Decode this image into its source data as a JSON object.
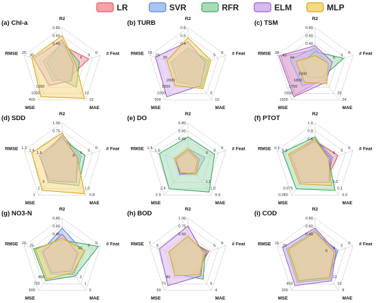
{
  "figure": {
    "legend": [
      {
        "name": "LR",
        "fill": "#f4a3a8",
        "stroke": "#e05a63"
      },
      {
        "name": "SVR",
        "fill": "#a9c4ee",
        "stroke": "#5b86d6"
      },
      {
        "name": "RFR",
        "fill": "#a8dcb9",
        "stroke": "#3da864"
      },
      {
        "name": "ELM",
        "fill": "#d8b8ee",
        "stroke": "#9c62cc"
      },
      {
        "name": "MLP",
        "fill": "#f7d884",
        "stroke": "#d9a81e"
      }
    ]
  },
  "chart_data": [
    {
      "type": "radar",
      "title": "(a) Chl-a",
      "axes": [
        "R2",
        "# Feat",
        "MAE",
        "MSE",
        "RMSE"
      ],
      "axis_ticks": {
        "R2": [
          "0.80",
          "0.60",
          "0.40"
        ],
        "# Feat": [
          "0",
          "3",
          "6"
        ],
        "MAE": [
          "15",
          "10"
        ],
        "MSE": [
          "400",
          "1000",
          "1200"
        ],
        "RMSE": [
          "25",
          "30"
        ]
      },
      "series": [
        {
          "name": "LR",
          "values": [
            0.55,
            0.7,
            0.3,
            0.25,
            0.3
          ]
        },
        {
          "name": "SVR",
          "values": [
            0.6,
            0.3,
            0.35,
            0.4,
            0.5
          ]
        },
        {
          "name": "RFR",
          "values": [
            0.65,
            0.45,
            0.6,
            0.3,
            0.4
          ]
        },
        {
          "name": "ELM",
          "values": [
            0.7,
            0.3,
            0.4,
            0.55,
            0.75
          ]
        },
        {
          "name": "MLP",
          "values": [
            0.8,
            0.35,
            0.95,
            0.9,
            0.8
          ]
        }
      ]
    },
    {
      "type": "radar",
      "title": "(b) TURB",
      "axes": [
        "R2",
        "# Feat",
        "MAE",
        "MSE",
        "RMSE"
      ],
      "axis_ticks": {
        "R2": [
          "0.8",
          "0.6",
          "0.4"
        ],
        "# Feat": [
          "0",
          "5"
        ],
        "MAE": [
          "10",
          "0"
        ],
        "MSE": [
          "500",
          "1000",
          "1500",
          "2000"
        ],
        "RMSE": [
          "18",
          "24",
          "30"
        ]
      },
      "series": [
        {
          "name": "LR",
          "values": [
            0.4,
            0.35,
            0.45,
            0.35,
            0.3
          ]
        },
        {
          "name": "SVR",
          "values": [
            0.45,
            0.5,
            0.5,
            0.45,
            0.4
          ]
        },
        {
          "name": "RFR",
          "values": [
            0.5,
            0.55,
            0.6,
            0.45,
            0.45
          ]
        },
        {
          "name": "ELM",
          "values": [
            0.65,
            0.45,
            0.55,
            0.9,
            0.85
          ]
        },
        {
          "name": "MLP",
          "values": [
            0.75,
            0.6,
            0.65,
            0.55,
            0.55
          ]
        }
      ]
    },
    {
      "type": "radar",
      "title": "(c) TSM",
      "axes": [
        "R2",
        "# Feat",
        "MAE",
        "MSE",
        "RMSE"
      ],
      "axis_ticks": {
        "R2": [
          "0.80",
          "0.60",
          "0.40"
        ],
        "# Feat": [
          "0",
          "3",
          "6"
        ],
        "MAE": [
          "24",
          "25"
        ],
        "MSE": [
          "1500",
          "1600",
          "1700",
          "1800",
          "1900"
        ],
        "RMSE": [
          "38",
          "42",
          "44"
        ]
      },
      "series": [
        {
          "name": "LR",
          "values": [
            0.45,
            0.3,
            0.35,
            0.85,
            0.9
          ]
        },
        {
          "name": "SVR",
          "values": [
            0.5,
            0.35,
            0.4,
            0.55,
            0.65
          ]
        },
        {
          "name": "RFR",
          "values": [
            0.4,
            0.75,
            0.3,
            0.3,
            0.35
          ]
        },
        {
          "name": "ELM",
          "values": [
            0.55,
            0.45,
            0.45,
            0.9,
            0.95
          ]
        },
        {
          "name": "MLP",
          "values": [
            0.3,
            0.35,
            0.5,
            0.45,
            0.5
          ]
        }
      ]
    },
    {
      "type": "radar",
      "title": "(d) SDD",
      "axes": [
        "R2",
        "# Feat",
        "MAE",
        "MSE",
        "RMSE"
      ],
      "axis_ticks": {
        "R2": [
          "1.00",
          "0.75"
        ],
        "# Feat": [
          "0",
          "3",
          "6",
          "9"
        ],
        "MAE": [
          "0.8",
          "1.0"
        ],
        "MSE": [
          "1",
          "2",
          "3"
        ],
        "RMSE": [
          "1.2",
          "1.4",
          "1.6"
        ]
      },
      "series": [
        {
          "name": "LR",
          "values": [
            0.55,
            0.45,
            0.5,
            0.45,
            0.45
          ]
        },
        {
          "name": "SVR",
          "values": [
            0.7,
            0.5,
            0.55,
            0.5,
            0.5
          ]
        },
        {
          "name": "RFR",
          "values": [
            0.6,
            0.6,
            0.7,
            0.6,
            0.55
          ]
        },
        {
          "name": "ELM",
          "values": [
            0.65,
            0.4,
            0.6,
            0.55,
            0.6
          ]
        },
        {
          "name": "MLP",
          "values": [
            0.75,
            0.4,
            0.95,
            0.85,
            0.8
          ]
        }
      ]
    },
    {
      "type": "radar",
      "title": "(e) DO",
      "axes": [
        "R2",
        "# Feat",
        "MAE",
        "MSE",
        "RMSE"
      ],
      "axis_ticks": {
        "R2": [
          "0.80",
          "0.60",
          "0.40"
        ],
        "# Feat": [
          "0",
          "3",
          "6"
        ],
        "MAE": [
          "0.9",
          "1.0",
          "1.1"
        ],
        "MSE": [
          "2.0",
          "2.4"
        ],
        "RMSE": [
          "1.4",
          "1.6"
        ]
      },
      "series": [
        {
          "name": "LR",
          "values": [
            0.3,
            0.3,
            0.3,
            0.3,
            0.3
          ]
        },
        {
          "name": "SVR",
          "values": [
            0.35,
            0.45,
            0.35,
            0.35,
            0.35
          ]
        },
        {
          "name": "RFR",
          "values": [
            0.65,
            0.7,
            0.9,
            0.8,
            0.75
          ]
        },
        {
          "name": "ELM",
          "values": [
            0.3,
            0.25,
            0.3,
            0.35,
            0.3
          ]
        },
        {
          "name": "MLP",
          "values": [
            0.35,
            0.3,
            0.35,
            0.3,
            0.35
          ]
        }
      ]
    },
    {
      "type": "radar",
      "title": "(f) PTOT",
      "axes": [
        "R2",
        "# Feat",
        "MAE",
        "MSE",
        "RMSE"
      ],
      "axis_ticks": {
        "R2": [
          "1.0",
          "0.8",
          "0.6"
        ],
        "# Feat": [
          "0",
          "3",
          "6"
        ],
        "MAE": [
          "0.0",
          "0.1",
          "0.2"
        ],
        "MSE": [
          "0.050",
          "0.075"
        ],
        "RMSE": [
          "0.2",
          "0.3"
        ]
      },
      "series": [
        {
          "name": "LR",
          "values": [
            0.55,
            0.6,
            0.5,
            0.5,
            0.55
          ]
        },
        {
          "name": "SVR",
          "values": [
            0.6,
            0.45,
            0.55,
            0.55,
            0.6
          ]
        },
        {
          "name": "RFR",
          "values": [
            0.65,
            0.35,
            0.85,
            0.8,
            0.85
          ]
        },
        {
          "name": "ELM",
          "values": [
            0.55,
            0.4,
            0.6,
            0.6,
            0.65
          ]
        },
        {
          "name": "MLP",
          "values": [
            0.6,
            0.35,
            0.7,
            0.65,
            0.7
          ]
        }
      ]
    },
    {
      "type": "radar",
      "title": "(g) NO3-N",
      "axes": [
        "R2",
        "# Feat",
        "MAE",
        "MSE",
        "RMSE"
      ],
      "axis_ticks": {
        "R2": [
          "0.80",
          "0.60",
          "0.40"
        ],
        "# Feat": [
          "0",
          "5",
          "10"
        ],
        "MAE": [
          "0",
          "1",
          "2"
        ],
        "MSE": [
          "600",
          "700",
          "800"
        ],
        "RMSE": [
          "20",
          "25"
        ]
      },
      "series": [
        {
          "name": "LR",
          "values": [
            0.4,
            0.45,
            0.35,
            0.4,
            0.4
          ]
        },
        {
          "name": "SVR",
          "values": [
            0.75,
            0.55,
            0.5,
            0.5,
            0.55
          ]
        },
        {
          "name": "RFR",
          "values": [
            0.45,
            0.95,
            0.55,
            0.7,
            0.75
          ]
        },
        {
          "name": "ELM",
          "values": [
            0.6,
            0.4,
            0.4,
            0.45,
            0.5
          ]
        },
        {
          "name": "MLP",
          "values": [
            0.5,
            0.6,
            0.45,
            0.65,
            0.7
          ]
        }
      ]
    },
    {
      "type": "radar",
      "title": "(h) BOD",
      "axes": [
        "R2",
        "# Feat",
        "MAE",
        "MSE",
        "RMSE"
      ],
      "axis_ticks": {
        "R2": [
          "1.00",
          "0.75",
          "0.50"
        ],
        "# Feat": [
          "0",
          "5"
        ],
        "MAE": [
          "4",
          "6"
        ],
        "MSE": [
          "50",
          "70",
          "80"
        ],
        "RMSE": [
          "7",
          "9"
        ]
      },
      "series": [
        {
          "name": "LR",
          "values": [
            0.45,
            0.55,
            0.4,
            0.4,
            0.4
          ]
        },
        {
          "name": "SVR",
          "values": [
            0.5,
            0.5,
            0.45,
            0.45,
            0.45
          ]
        },
        {
          "name": "RFR",
          "values": [
            0.55,
            0.45,
            0.65,
            0.5,
            0.5
          ]
        },
        {
          "name": "ELM",
          "values": [
            0.8,
            0.4,
            0.55,
            0.85,
            0.75
          ]
        },
        {
          "name": "MLP",
          "values": [
            0.55,
            0.45,
            0.5,
            0.55,
            0.5
          ]
        }
      ]
    },
    {
      "type": "radar",
      "title": "(i) COD",
      "axes": [
        "R2",
        "# Feat",
        "MAE",
        "MSE",
        "RMSE"
      ],
      "axis_ticks": {
        "R2": [
          "0.80",
          "0.60",
          "0.40"
        ],
        "# Feat": [
          "0",
          "2",
          "4",
          "6"
        ],
        "MAE": [
          "8",
          "10",
          "12"
        ],
        "MSE": [
          "200",
          "400"
        ],
        "RMSE": [
          "16",
          "20"
        ]
      },
      "series": [
        {
          "name": "LR",
          "values": [
            0.6,
            0.45,
            0.55,
            0.6,
            0.65
          ]
        },
        {
          "name": "SVR",
          "values": [
            0.65,
            0.6,
            0.6,
            0.65,
            0.7
          ]
        },
        {
          "name": "RFR",
          "values": [
            0.7,
            0.5,
            0.65,
            0.75,
            0.75
          ]
        },
        {
          "name": "ELM",
          "values": [
            0.75,
            0.55,
            0.7,
            0.85,
            0.85
          ]
        },
        {
          "name": "MLP",
          "values": [
            0.65,
            0.5,
            0.6,
            0.7,
            0.7
          ]
        }
      ]
    }
  ]
}
